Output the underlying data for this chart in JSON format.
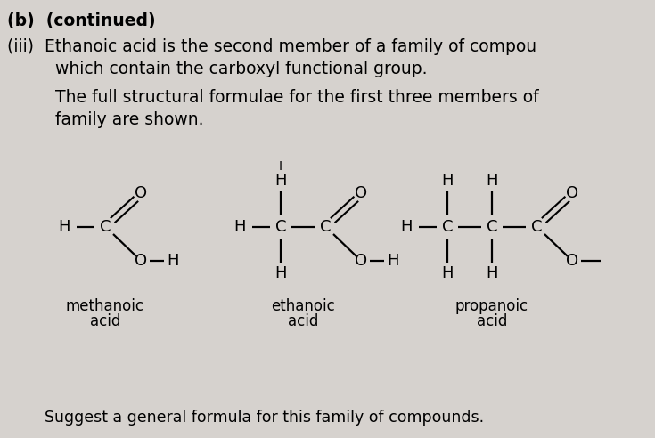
{
  "bg_color": "#d6d2ce",
  "font_size_header": 13.5,
  "font_size_struct": 13,
  "font_size_label": 12,
  "font_size_suggest": 12.5,
  "header_bold": "(b)  (continued)",
  "iii_line1": "(iii)  Ethanoic acid is the second member of a family of compou",
  "iii_line2": "         which contain the carboxyl functional group.",
  "the_line1": "         The full structural formulae for the first three members of",
  "the_line2": "         family are shown.",
  "suggest": "Suggest a general formula for this family of compounds.",
  "methanoic": [
    "methanoic",
    "acid"
  ],
  "ethanoic": [
    "ethanoic",
    "acid"
  ],
  "propanoic": [
    "propanoic",
    "acid"
  ]
}
